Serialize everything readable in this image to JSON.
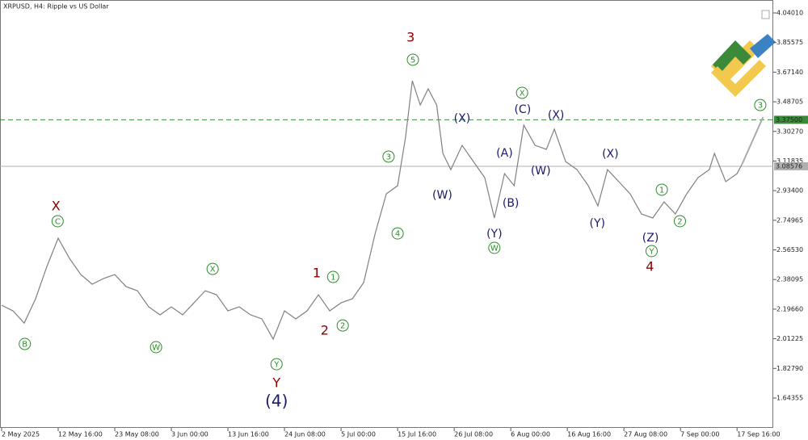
{
  "chart_data": {
    "type": "line",
    "title": "XRPUSD, H4:  Ripple vs US Dollar",
    "color": "#808080",
    "x": [
      0,
      2,
      4,
      6,
      8,
      10,
      12,
      14,
      16,
      18,
      20,
      22,
      24,
      26,
      28,
      30,
      32,
      34,
      36,
      38,
      40,
      42,
      44,
      46,
      48,
      50,
      52,
      54,
      56,
      58,
      60,
      62,
      64,
      66,
      68,
      70,
      71.4,
      72.6,
      74,
      75.4,
      76.9,
      78,
      79.4,
      81.4,
      83.4,
      85.4,
      87.1,
      88.9,
      90.6,
      92.3,
      94.3,
      96.3,
      97.7,
      99.7,
      101.7,
      103.7,
      105.4,
      107.1,
      109.1,
      111.1,
      113.1,
      115.1,
      117.1,
      119.1,
      121.1,
      123.1,
      125.1,
      126,
      128,
      130,
      130.9
    ],
    "values": [
      2.221,
      2.186,
      2.11,
      2.261,
      2.462,
      2.638,
      2.512,
      2.412,
      2.352,
      2.387,
      2.412,
      2.337,
      2.311,
      2.211,
      2.161,
      2.211,
      2.161,
      2.236,
      2.311,
      2.286,
      2.186,
      2.211,
      2.161,
      2.136,
      2.01,
      2.186,
      2.136,
      2.186,
      2.286,
      2.186,
      2.236,
      2.261,
      2.362,
      2.663,
      2.914,
      2.965,
      3.266,
      3.618,
      3.467,
      3.568,
      3.467,
      3.166,
      3.065,
      3.216,
      3.115,
      3.015,
      2.764,
      3.04,
      2.965,
      3.342,
      3.216,
      3.191,
      3.317,
      3.115,
      3.065,
      2.965,
      2.839,
      3.065,
      2.99,
      2.914,
      2.789,
      2.764,
      2.864,
      2.789,
      2.914,
      3.015,
      3.065,
      3.166,
      2.99,
      3.04,
      3.1
    ],
    "forecast": {
      "x": [
        130.9,
        134.6
      ],
      "values": [
        3.1,
        3.392
      ],
      "color": "#aaaaaa"
    },
    "xlim": [
      0,
      136.4
    ],
    "ylim": [
      1.4576,
      4.1205
    ],
    "xticks": [
      {
        "value": 0,
        "label": "2 May 2025"
      },
      {
        "value": 10,
        "label": "12 May 16:00"
      },
      {
        "value": 20,
        "label": "23 May 08:00"
      },
      {
        "value": 30,
        "label": "3 Jun 00:00"
      },
      {
        "value": 40,
        "label": "13 Jun 16:00"
      },
      {
        "value": 50,
        "label": "24 Jun 08:00"
      },
      {
        "value": 60,
        "label": "5 Jul 00:00"
      },
      {
        "value": 70,
        "label": "15 Jul 16:00"
      },
      {
        "value": 80,
        "label": "26 Jul 08:00"
      },
      {
        "value": 90,
        "label": "6 Aug 00:00"
      },
      {
        "value": 100,
        "label": "16 Aug 16:00"
      },
      {
        "value": 110,
        "label": "27 Aug 08:00"
      },
      {
        "value": 120,
        "label": "7 Sep 00:00"
      },
      {
        "value": 130,
        "label": "17 Sep 16:00"
      }
    ],
    "yticks": [
      {
        "value": 4.0401,
        "label": "4.04010"
      },
      {
        "value": 3.85575,
        "label": "3.85575"
      },
      {
        "value": 3.6714,
        "label": "3.67140"
      },
      {
        "value": 3.48705,
        "label": "3.48705"
      },
      {
        "value": 3.3027,
        "label": "3.30270"
      },
      {
        "value": 3.11835,
        "label": "3.11835"
      },
      {
        "value": 2.934,
        "label": "2.93400"
      },
      {
        "value": 2.74965,
        "label": "2.74965"
      },
      {
        "value": 2.5653,
        "label": "2.56530"
      },
      {
        "value": 2.38095,
        "label": "2.38095"
      },
      {
        "value": 2.1966,
        "label": "2.19660"
      },
      {
        "value": 2.01225,
        "label": "2.01225"
      },
      {
        "value": 1.8279,
        "label": "1.82790"
      },
      {
        "value": 1.64355,
        "label": "1.64355"
      }
    ],
    "levels": [
      {
        "value": 3.375,
        "label": "3.37500",
        "color": "#3a8a3a",
        "dashed": true
      },
      {
        "value": 3.08576,
        "label": "3.08576",
        "color": "#b0b0b0",
        "dashed": false
      }
    ],
    "annotation_styles": {
      "red": "#8b0000",
      "blue": "#1a1a6e",
      "circle": "#2e8b2e"
    },
    "annotations": [
      {
        "text": "X",
        "style": "red",
        "x": 9.6,
        "y": 2.834
      },
      {
        "text": "C",
        "style": "circle",
        "x": 9.9,
        "y": 2.744
      },
      {
        "text": "B",
        "style": "circle",
        "x": 4.1,
        "y": 1.98
      },
      {
        "text": "W",
        "style": "circle",
        "x": 27.3,
        "y": 1.96
      },
      {
        "text": "X",
        "style": "circle",
        "x": 37.3,
        "y": 2.447
      },
      {
        "text": "Y",
        "style": "circle",
        "x": 48.6,
        "y": 1.854
      },
      {
        "text": "Y",
        "style": "red",
        "x": 48.6,
        "y": 1.734
      },
      {
        "text": "(4)",
        "style": "blue",
        "x": 48.6,
        "y": 1.618,
        "size": 20
      },
      {
        "text": "1",
        "style": "red",
        "x": 55.7,
        "y": 2.417
      },
      {
        "text": "1",
        "style": "circle",
        "x": 58.6,
        "y": 2.397
      },
      {
        "text": "2",
        "style": "red",
        "x": 57.1,
        "y": 2.06
      },
      {
        "text": "2",
        "style": "circle",
        "x": 60.3,
        "y": 2.095
      },
      {
        "text": "3",
        "style": "circle",
        "x": 68.4,
        "y": 3.146
      },
      {
        "text": "4",
        "style": "circle",
        "x": 70,
        "y": 2.668
      },
      {
        "text": "3",
        "style": "red",
        "x": 72.3,
        "y": 3.884
      },
      {
        "text": "5",
        "style": "circle",
        "x": 72.7,
        "y": 3.749
      },
      {
        "text": "(W)",
        "style": "blue",
        "x": 77.9,
        "y": 2.904
      },
      {
        "text": "(X)",
        "style": "blue",
        "x": 81.4,
        "y": 3.382
      },
      {
        "text": "(Y)",
        "style": "blue",
        "x": 87.1,
        "y": 2.663
      },
      {
        "text": "W",
        "style": "circle",
        "x": 87.1,
        "y": 2.578
      },
      {
        "text": "(A)",
        "style": "blue",
        "x": 88.9,
        "y": 3.166
      },
      {
        "text": "(B)",
        "style": "blue",
        "x": 90,
        "y": 2.854
      },
      {
        "text": "X",
        "style": "circle",
        "x": 92,
        "y": 3.543
      },
      {
        "text": "(C)",
        "style": "blue",
        "x": 92.1,
        "y": 3.437
      },
      {
        "text": "(X)",
        "style": "blue",
        "x": 98,
        "y": 3.402
      },
      {
        "text": "(W)",
        "style": "blue",
        "x": 95.3,
        "y": 3.055
      },
      {
        "text": "(X)",
        "style": "blue",
        "x": 107.6,
        "y": 3.161
      },
      {
        "text": "(Y)",
        "style": "blue",
        "x": 105.3,
        "y": 2.729
      },
      {
        "text": "(Z)",
        "style": "blue",
        "x": 114.7,
        "y": 2.638
      },
      {
        "text": "Y",
        "style": "circle",
        "x": 114.9,
        "y": 2.558
      },
      {
        "text": "4",
        "style": "red",
        "x": 114.6,
        "y": 2.457
      },
      {
        "text": "1",
        "style": "circle",
        "x": 116.7,
        "y": 2.94
      },
      {
        "text": "2",
        "style": "circle",
        "x": 119.9,
        "y": 2.744
      },
      {
        "text": "3",
        "style": "circle",
        "x": 134.1,
        "y": 3.467
      }
    ]
  }
}
